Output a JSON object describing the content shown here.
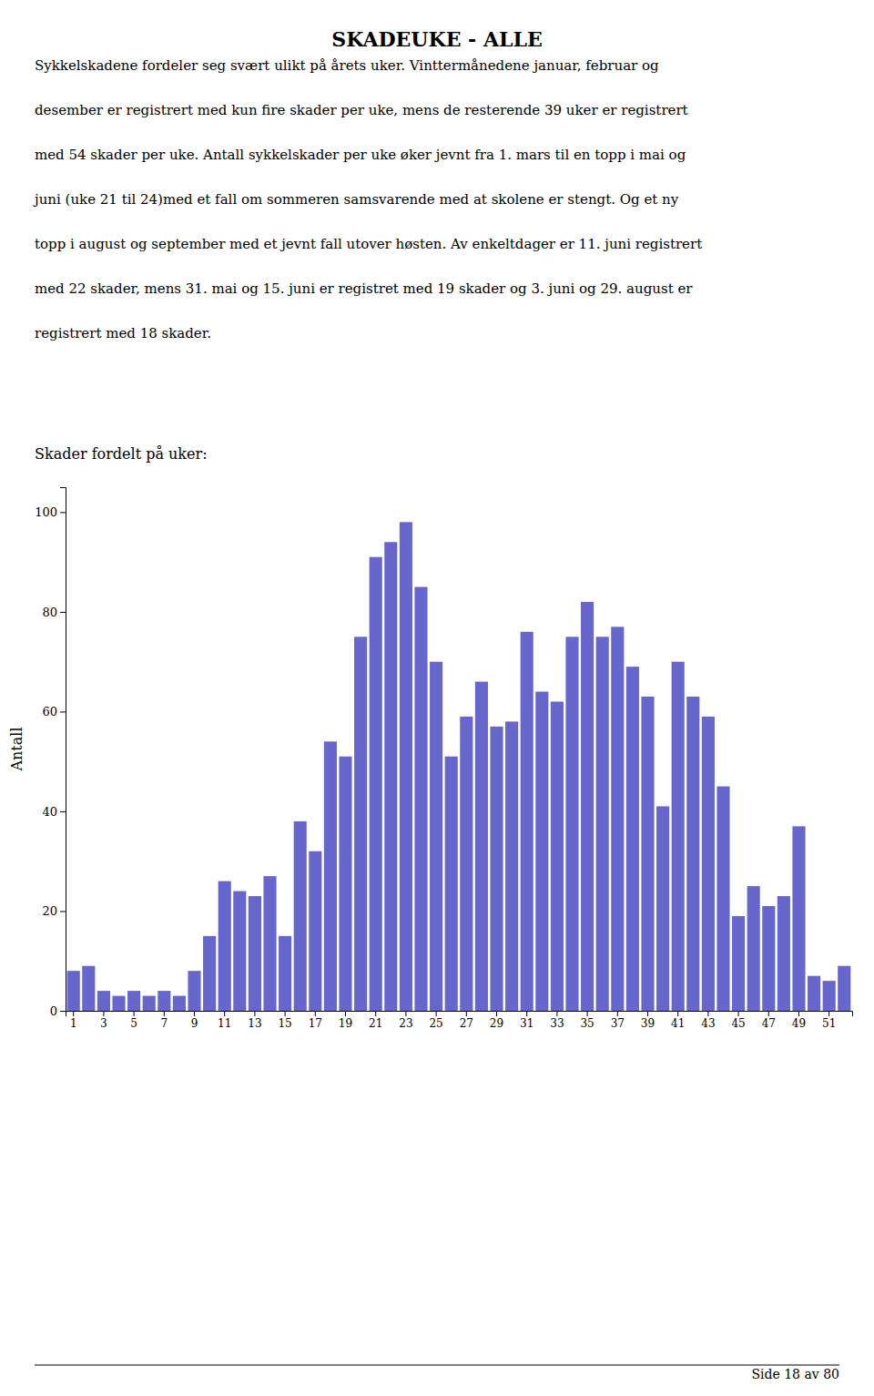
{
  "chart_data": {
    "type": "bar",
    "title": "SKADEUKE - ALLE",
    "subtitle": "Skader fordelt på uker:",
    "ylabel": "Antall",
    "categories": [
      "1",
      null,
      "3",
      null,
      "5",
      null,
      "7",
      null,
      "9",
      null,
      "11",
      null,
      "13",
      null,
      "15",
      null,
      "17",
      null,
      "19",
      null,
      "21",
      null,
      "23",
      null,
      "25",
      null,
      "27",
      null,
      "29",
      null,
      "31",
      null,
      "33",
      null,
      "35",
      null,
      "37",
      null,
      "39",
      null,
      "41",
      null,
      "43",
      null,
      "45",
      null,
      "47",
      null,
      "49",
      null,
      "51",
      null
    ],
    "values": [
      8,
      9,
      4,
      3,
      4,
      3,
      4,
      3,
      8,
      15,
      26,
      24,
      23,
      27,
      15,
      38,
      32,
      54,
      51,
      75,
      91,
      94,
      98,
      85,
      70,
      51,
      59,
      66,
      57,
      58,
      76,
      64,
      62,
      75,
      82,
      75,
      77,
      69,
      63,
      41,
      70,
      63,
      59,
      45,
      19,
      25,
      21,
      23,
      37,
      7,
      6,
      9
    ],
    "color": "#6666cc",
    "ylim": [
      0,
      105
    ],
    "yticks": [
      0,
      20,
      40,
      60,
      80,
      100
    ],
    "grid": false
  },
  "paragraph_lines": [
    "Sykkelskadene fordeler seg svært ulikt på årets uker. Vinttermånedene januar, februar og",
    "desember er registrert med kun fire skader per uke, mens de resterende 39 uker er registrert",
    "med 54 skader per uke. Antall sykkelskader per uke øker jevnt fra 1. mars til en topp i mai og",
    "juni (uke 21 til 24)med et fall om sommeren samsvarende med at skolene er stengt. Og et ny",
    "topp i august og september med et jevnt fall utover høsten. Av enkeltdager er 11. juni registrert",
    "med 22 skader, mens 31. mai og 15. juni er registret med 19 skader og 3. juni og 29. august er",
    "registrert med 18 skader."
  ],
  "footer": "Side 18 av 80"
}
